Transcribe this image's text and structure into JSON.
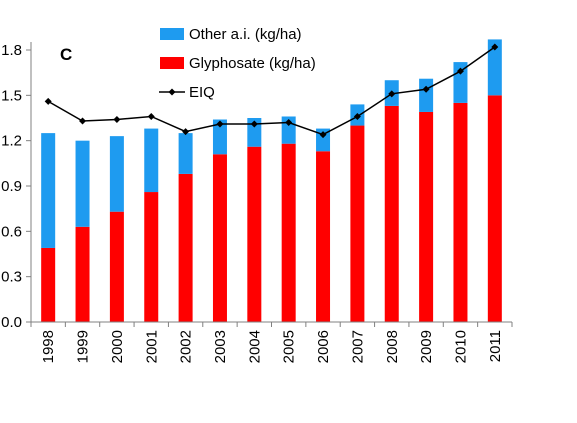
{
  "chart_data": {
    "type": "bar",
    "panel_label": "C",
    "categories": [
      "1998",
      "1999",
      "2000",
      "2001",
      "2002",
      "2003",
      "2004",
      "2005",
      "2006",
      "2007",
      "2008",
      "2009",
      "2010",
      "2011"
    ],
    "series": [
      {
        "name": "Glyphosate (kg/ha)",
        "kind": "stacked-bar",
        "color": "#ff0000",
        "values": [
          0.49,
          0.63,
          0.73,
          0.86,
          0.98,
          1.11,
          1.16,
          1.18,
          1.13,
          1.3,
          1.43,
          1.39,
          1.45,
          1.5
        ]
      },
      {
        "name": "Other a.i. (kg/ha)",
        "kind": "stacked-bar",
        "color": "#1e9bf0",
        "values": [
          0.76,
          0.57,
          0.5,
          0.42,
          0.27,
          0.23,
          0.19,
          0.18,
          0.15,
          0.14,
          0.17,
          0.22,
          0.27,
          0.37
        ]
      },
      {
        "name": "EIQ",
        "kind": "line-marker",
        "color": "#000000",
        "marker": "diamond",
        "values": [
          1.46,
          1.33,
          1.34,
          1.36,
          1.26,
          1.31,
          1.31,
          1.32,
          1.24,
          1.36,
          1.51,
          1.54,
          1.66,
          1.82
        ]
      }
    ],
    "ylim": [
      0,
      1.8
    ],
    "yticks": [
      "0.0",
      "0.3",
      "0.6",
      "0.9",
      "1.2",
      "1.5",
      "1.8"
    ],
    "xlabel": "",
    "ylabel": "",
    "legend_position": "top-center",
    "grid": false
  }
}
